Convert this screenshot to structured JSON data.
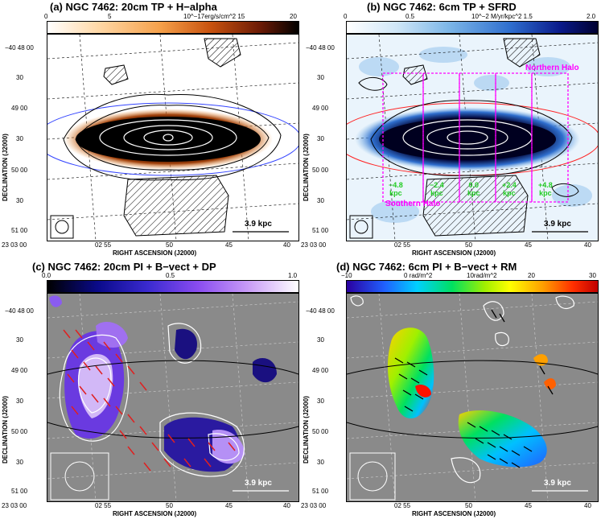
{
  "panels": [
    {
      "title": "(a) NGC 7462: 20cm TP + H−alpha",
      "colorbar": {
        "ticks": [
          "0",
          "5",
          "10^−17erg/s/cm^2 15",
          "20"
        ],
        "map": "heat"
      },
      "yticks": [
        "−40 48 00",
        "30",
        "49 00",
        "30",
        "50 00",
        "30",
        "51 00"
      ],
      "xticks": [
        "23 03 00",
        "02 55",
        "50",
        "45",
        "40"
      ],
      "ylabel": "DECLINATION (J2000)",
      "xlabel": "RIGHT ASCENSION (J2000)",
      "scale_bar": "3.9 kpc",
      "annotations": []
    },
    {
      "title": "(b) NGC 7462: 6cm TP + SFRD",
      "colorbar": {
        "ticks": [
          "0",
          "0.5",
          "10^−2 M/yr/kpc^2 1.5",
          "2.0"
        ],
        "map": "blue"
      },
      "yticks": [
        "−40 48 00",
        "30",
        "49 00",
        "30",
        "50 00",
        "30",
        "51 00"
      ],
      "xticks": [
        "23 03 00",
        "02 55",
        "50",
        "45",
        "40"
      ],
      "ylabel": "DECLINATION (J2000)",
      "xlabel": "RIGHT ASCENSION (J2000)",
      "scale_bar": "3.9 kpc",
      "annotations": [
        "Northern Halo",
        "Southern Halo"
      ],
      "strip_labels": [
        {
          "pos": "−4.8",
          "unit": "kpc"
        },
        {
          "pos": "−2.4",
          "unit": "kpc"
        },
        {
          "pos": "0.0",
          "unit": "kpc"
        },
        {
          "pos": "+2.4",
          "unit": "kpc"
        },
        {
          "pos": "+4.8",
          "unit": "kpc"
        }
      ]
    },
    {
      "title": "(c) NGC 7462: 20cm PI + B−vect + DP",
      "colorbar": {
        "ticks": [
          "0.0",
          "0.5",
          "1.0"
        ],
        "map": "purple"
      },
      "yticks": [
        "−40 48 00",
        "30",
        "49 00",
        "30",
        "50 00",
        "30",
        "51 00"
      ],
      "xticks": [
        "23 03 00",
        "02 55",
        "50",
        "45",
        "40"
      ],
      "ylabel": "DECLINATION (J2000)",
      "xlabel": "RIGHT ASCENSION (J2000)",
      "scale_bar": "3.9 kpc",
      "annotations": []
    },
    {
      "title": "(d) NGC 7462: 6cm PI + B−vect + RM",
      "colorbar": {
        "ticks": [
          "−10",
          "0 rad/m^2",
          "10rad/m^2",
          "20",
          "30"
        ],
        "map": "rainbow"
      },
      "yticks": [
        "−40 48 00",
        "30",
        "49 00",
        "30",
        "50 00",
        "30",
        "51 00"
      ],
      "xticks": [
        "23 03 00",
        "02 55",
        "50",
        "45",
        "40"
      ],
      "ylabel": "DECLINATION (J2000)",
      "xlabel": "RIGHT ASCENSION (J2000)",
      "scale_bar": "3.9 kpc",
      "annotations": []
    }
  ],
  "colors": {
    "grey_bg": "#8a8a8a",
    "contour_white": "#ffffff",
    "contour_black": "#000000",
    "magenta_box": "#ff00ff",
    "green_label": "#22cc22",
    "vector_red": "#e02020",
    "ellipse_blue": "#3344ff",
    "ellipse_red": "#ff2222"
  }
}
